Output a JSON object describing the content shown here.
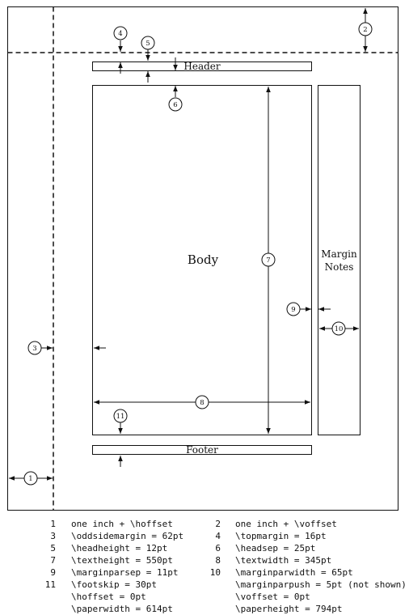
{
  "diagram": {
    "header_label": "Header",
    "body_label": "Body",
    "footer_label": "Footer",
    "margin_notes_label_line1": "Margin",
    "margin_notes_label_line2": "Notes",
    "markers": [
      "1",
      "2",
      "3",
      "4",
      "5",
      "6",
      "7",
      "8",
      "9",
      "10",
      "11"
    ]
  },
  "legend": {
    "rows": [
      {
        "left": {
          "num": "1",
          "text": "one inch + \\hoffset"
        },
        "right": {
          "num": "2",
          "text": "one inch + \\voffset"
        }
      },
      {
        "left": {
          "num": "3",
          "text": "\\oddsidemargin = 62pt"
        },
        "right": {
          "num": "4",
          "text": "\\topmargin = 16pt"
        }
      },
      {
        "left": {
          "num": "5",
          "text": "\\headheight = 12pt"
        },
        "right": {
          "num": "6",
          "text": "\\headsep = 25pt"
        }
      },
      {
        "left": {
          "num": "7",
          "text": "\\textheight = 550pt"
        },
        "right": {
          "num": "8",
          "text": "\\textwidth = 345pt"
        }
      },
      {
        "left": {
          "num": "9",
          "text": "\\marginparsep = 11pt"
        },
        "right": {
          "num": "10",
          "text": "\\marginparwidth = 65pt"
        }
      },
      {
        "left": {
          "num": "11",
          "text": "\\footskip = 30pt"
        },
        "right": {
          "num": "",
          "text": "\\marginparpush = 5pt (not shown)"
        }
      },
      {
        "left": {
          "num": "",
          "text": "\\hoffset = 0pt"
        },
        "right": {
          "num": "",
          "text": "\\voffset = 0pt"
        }
      },
      {
        "left": {
          "num": "",
          "text": "\\paperwidth = 614pt"
        },
        "right": {
          "num": "",
          "text": "\\paperheight = 794pt"
        }
      }
    ]
  }
}
